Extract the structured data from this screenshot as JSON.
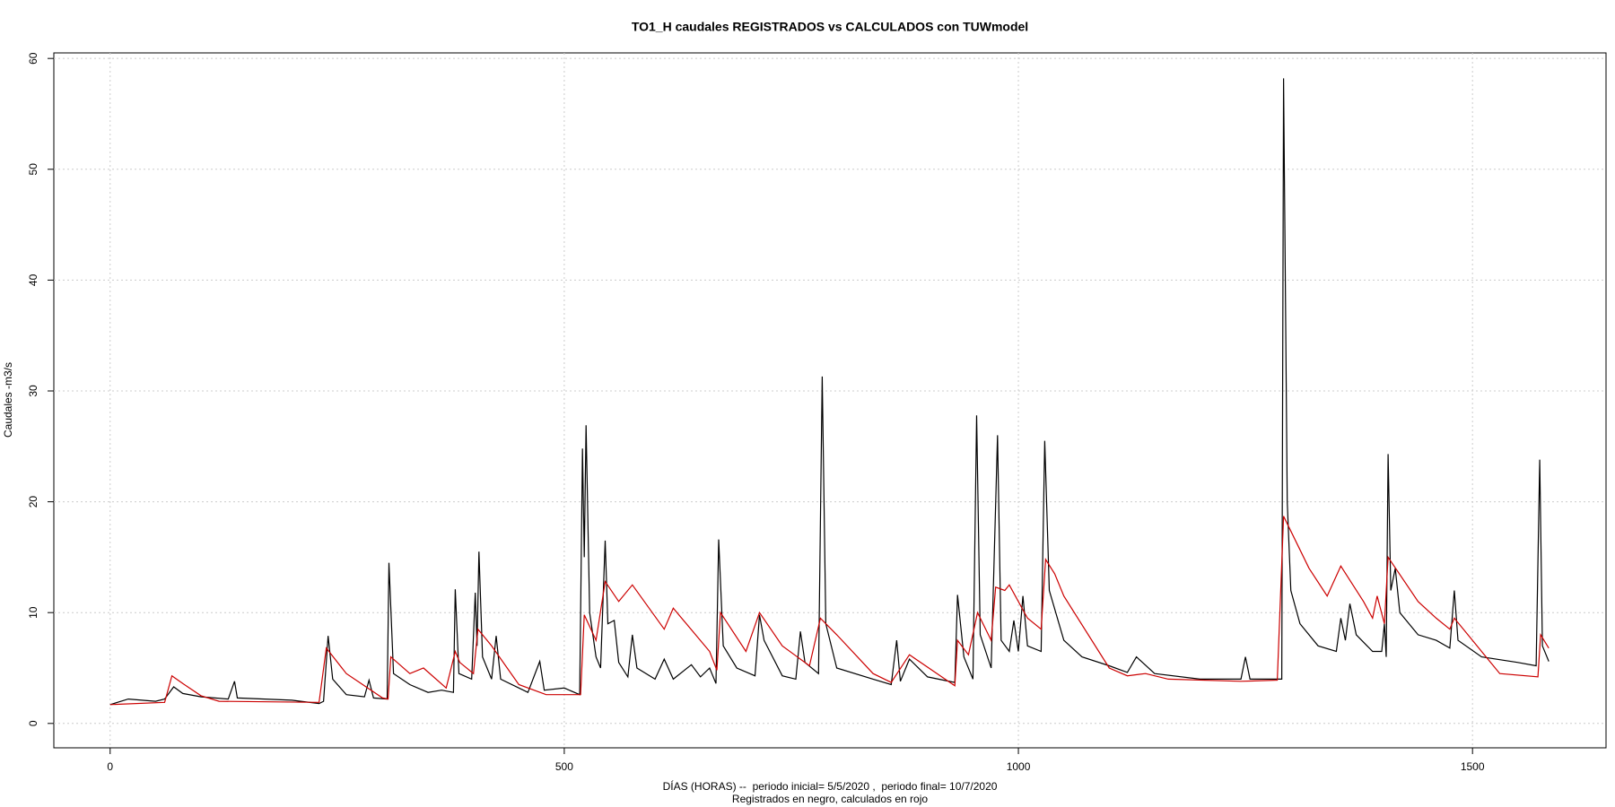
{
  "chart_data": {
    "type": "line",
    "title": "TO1_H caudales REGISTRADOS vs CALCULADOS con TUWmodel",
    "x_label": "DÍAS (HORAS) --  periodo inicial= 5/5/2020 ,  periodo final= 10/7/2020",
    "subtitle": "Registrados en negro, calculados en rojo",
    "y_label": "Caudales -m3/s",
    "xlim": [
      -62,
      1647
    ],
    "ylim": [
      -2.2,
      60.5
    ],
    "xticks": [
      0,
      500,
      1000,
      1500
    ],
    "yticks": [
      0,
      10,
      20,
      30,
      40,
      50,
      60
    ],
    "grid": true,
    "series": [
      {
        "color": "#000000",
        "x": [
          0,
          20,
          50,
          60,
          70,
          80,
          100,
          130,
          137,
          140,
          200,
          230,
          235,
          240,
          245,
          260,
          280,
          285,
          290,
          305,
          307,
          312,
          330,
          350,
          365,
          378,
          380,
          384,
          398,
          402,
          404,
          406,
          410,
          420,
          425,
          430,
          460,
          473,
          478,
          500,
          517,
          520,
          522,
          524,
          528,
          535,
          540,
          545,
          548,
          555,
          560,
          570,
          575,
          580,
          600,
          610,
          620,
          640,
          650,
          660,
          667,
          670,
          675,
          690,
          710,
          715,
          720,
          740,
          755,
          760,
          765,
          780,
          784,
          788,
          800,
          840,
          860,
          866,
          870,
          880,
          900,
          930,
          933,
          940,
          950,
          954,
          958,
          970,
          977,
          981,
          990,
          995,
          1000,
          1005,
          1010,
          1025,
          1029,
          1034,
          1050,
          1070,
          1100,
          1120,
          1130,
          1150,
          1200,
          1245,
          1250,
          1255,
          1290,
          1292,
          1296,
          1300,
          1310,
          1330,
          1350,
          1355,
          1360,
          1365,
          1372,
          1390,
          1400,
          1403,
          1405,
          1407,
          1410,
          1415,
          1420,
          1440,
          1460,
          1475,
          1480,
          1484,
          1510,
          1550,
          1570,
          1574,
          1577,
          1584
        ],
        "values": [
          1.7,
          2.2,
          2.0,
          2.2,
          3.3,
          2.7,
          2.4,
          2.2,
          3.8,
          2.3,
          2.1,
          1.8,
          2.0,
          7.9,
          4.0,
          2.6,
          2.4,
          3.9,
          2.3,
          2.2,
          14.5,
          4.5,
          3.5,
          2.8,
          3.0,
          2.8,
          12.1,
          4.5,
          4.0,
          11.8,
          7.0,
          15.5,
          6.0,
          4.0,
          7.9,
          4.0,
          2.8,
          5.6,
          3.0,
          3.2,
          2.6,
          24.8,
          15,
          26.9,
          10,
          6,
          5,
          16.5,
          9,
          9.3,
          5.5,
          4.2,
          8.0,
          5.0,
          4.0,
          5.8,
          4.0,
          5.3,
          4.2,
          5.0,
          3.6,
          16.6,
          7.0,
          5.0,
          4.3,
          9.8,
          7.5,
          4.3,
          4.0,
          8.3,
          5.5,
          4.5,
          31.3,
          9,
          5.0,
          4.0,
          3.5,
          7.5,
          3.8,
          5.8,
          4.2,
          3.7,
          11.6,
          6,
          4.0,
          27.8,
          8,
          5.0,
          26,
          7.5,
          6.5,
          9.3,
          6.5,
          11.5,
          7.0,
          6.5,
          25.5,
          12,
          7.5,
          6.0,
          5.2,
          4.6,
          6.0,
          4.5,
          4.0,
          4.0,
          6.0,
          4.0,
          4.0,
          58.2,
          20,
          12,
          9,
          7,
          6.5,
          9.5,
          7.5,
          10.8,
          8,
          6.5,
          6.5,
          9.0,
          6,
          24.3,
          12,
          14,
          10,
          8.0,
          7.5,
          6.8,
          12.0,
          7.5,
          6.0,
          5.5,
          5.2,
          23.8,
          7,
          5.6
        ]
      },
      {
        "color": "#cc0000",
        "x": [
          0,
          60,
          68,
          80,
          100,
          120,
          230,
          238,
          260,
          300,
          306,
          309,
          330,
          345,
          370,
          380,
          385,
          400,
          405,
          420,
          450,
          480,
          518,
          522,
          535,
          545,
          560,
          575,
          610,
          620,
          660,
          668,
          672,
          700,
          715,
          740,
          770,
          782,
          800,
          840,
          860,
          880,
          930,
          933,
          945,
          955,
          970,
          975,
          985,
          990,
          1010,
          1025,
          1030,
          1040,
          1050,
          1100,
          1120,
          1140,
          1165,
          1245,
          1285,
          1292,
          1320,
          1340,
          1355,
          1380,
          1390,
          1395,
          1403,
          1407,
          1440,
          1460,
          1475,
          1480,
          1510,
          1530,
          1572,
          1575,
          1584
        ],
        "values": [
          1.7,
          1.9,
          4.3,
          3.6,
          2.5,
          2.0,
          1.9,
          6.8,
          4.5,
          2.3,
          2.2,
          6.0,
          4.5,
          5.0,
          3.2,
          6.5,
          5.5,
          4.5,
          8.5,
          7.0,
          3.5,
          2.6,
          2.6,
          9.8,
          7.5,
          12.8,
          11,
          12.5,
          8.5,
          10.4,
          6.5,
          4.8,
          10.0,
          6.5,
          10.0,
          7.0,
          5.2,
          9.5,
          8,
          4.5,
          3.7,
          6.2,
          3.4,
          7.5,
          6.2,
          10.0,
          7.5,
          12.3,
          12.0,
          12.5,
          9.5,
          8.5,
          14.8,
          13.5,
          11.5,
          5.0,
          4.3,
          4.5,
          4.0,
          3.8,
          3.9,
          18.7,
          14,
          11.5,
          14.2,
          11,
          9.5,
          11.5,
          9.0,
          15.0,
          11,
          9.5,
          8.5,
          9.5,
          6.5,
          4.5,
          4.2,
          8.0,
          6.8
        ]
      }
    ]
  }
}
